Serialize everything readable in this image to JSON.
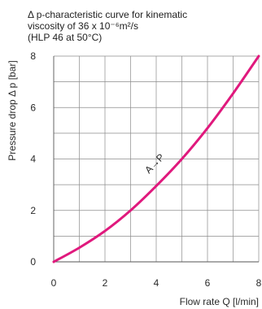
{
  "chart_data": {
    "type": "line",
    "title_lines": [
      "Δ p-characteristic curve for kinematic",
      "viscosity of 36 x 10⁻⁶m²/s",
      "(HLP 46 at 50°C)"
    ],
    "xlabel": "Flow rate  Q [l/min]",
    "ylabel": "Pressure drop Δ p [bar]",
    "xlim": [
      0,
      8
    ],
    "ylim": [
      0,
      8
    ],
    "x_ticks": [
      "0",
      "2",
      "4",
      "6",
      "8"
    ],
    "y_ticks": [
      "0",
      "2",
      "4",
      "6",
      "8"
    ],
    "grid": true,
    "series": [
      {
        "name": "A→P",
        "color": "#e0197d",
        "x": [
          0,
          1,
          2,
          3,
          4,
          5,
          6,
          7,
          8
        ],
        "y": [
          0,
          0.55,
          1.2,
          2.0,
          2.95,
          4.0,
          5.2,
          6.55,
          8.0
        ]
      }
    ]
  }
}
